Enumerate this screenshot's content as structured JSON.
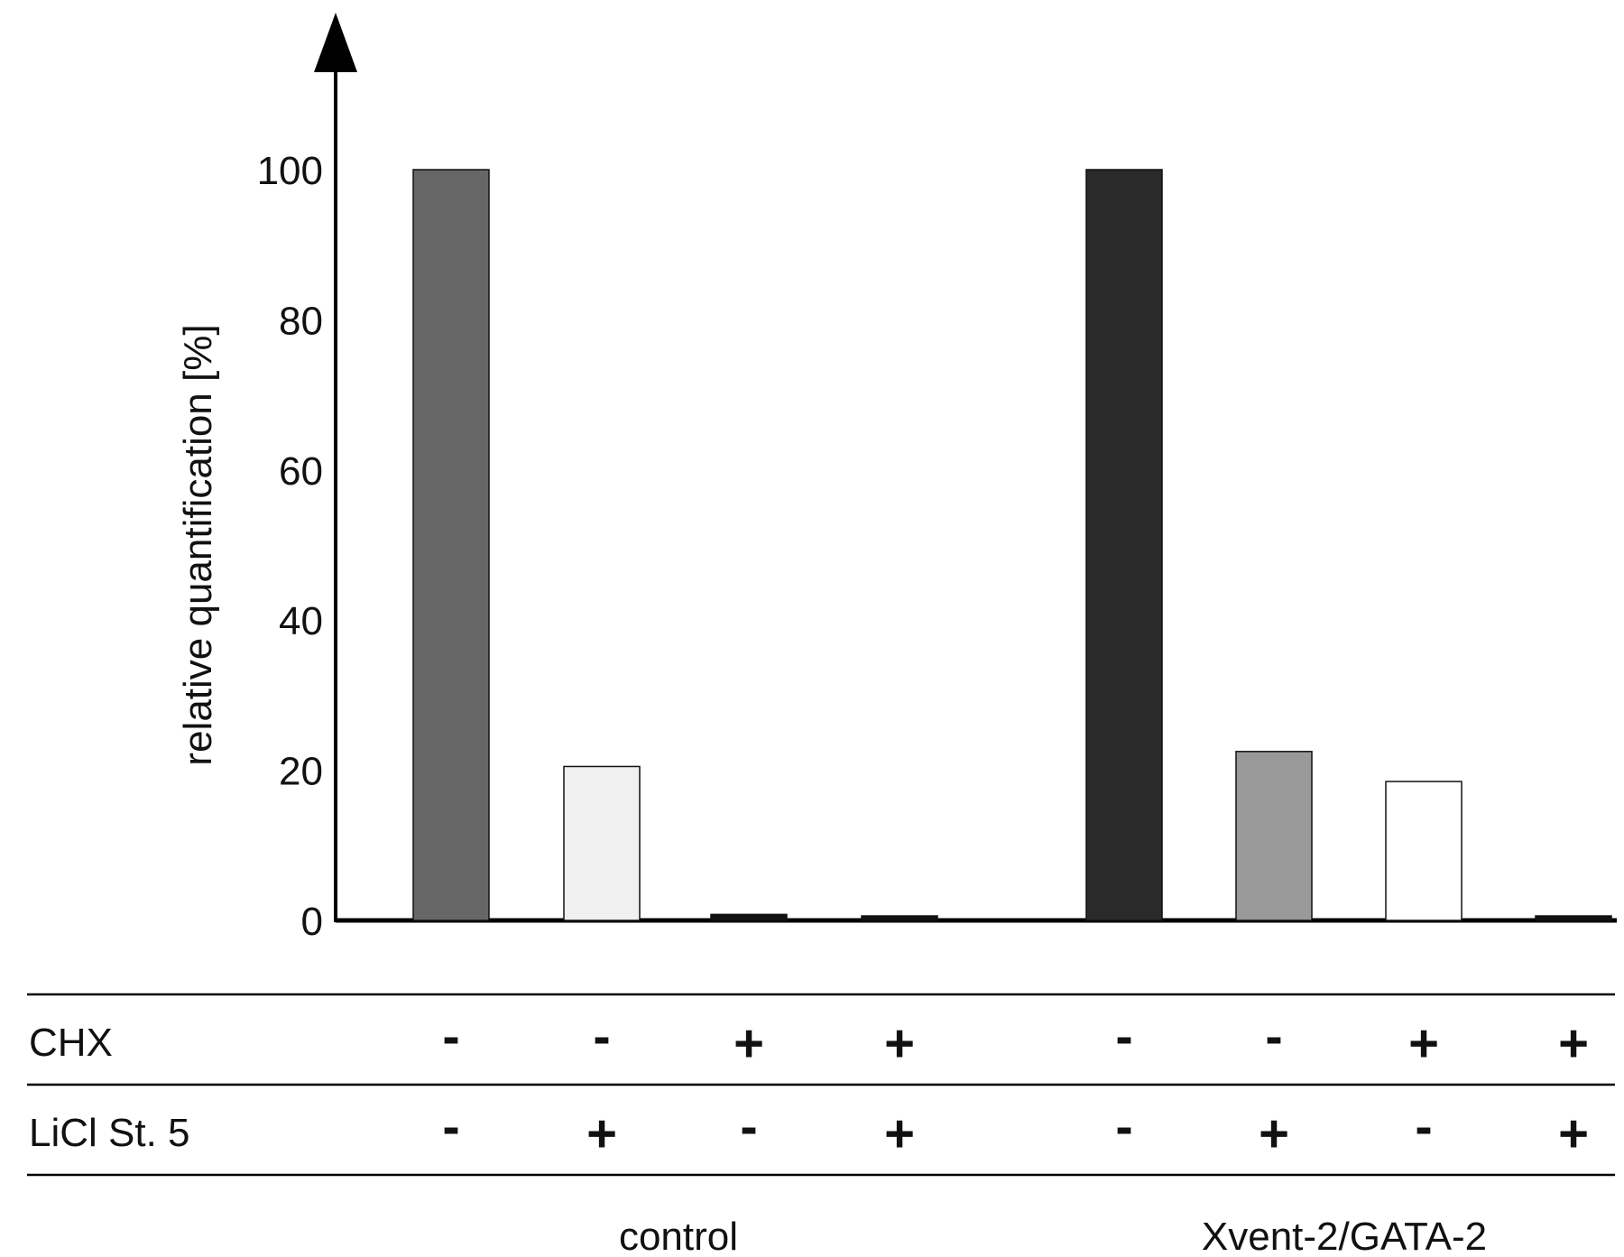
{
  "chart_data": {
    "type": "bar",
    "ylabel": "relative  quantification [%]",
    "xlabel": "",
    "ylim": [
      0,
      120
    ],
    "yticks": [
      0,
      20,
      40,
      60,
      80,
      100
    ],
    "grid": false,
    "legend": "none",
    "groups": [
      {
        "name": "control",
        "bars": [
          {
            "value": 100,
            "color": "#666666"
          },
          {
            "value": 20.5,
            "color": "#f0f0f0"
          },
          {
            "value": 0.8,
            "color": "#111111"
          },
          {
            "value": 0.6,
            "color": "#111111"
          }
        ]
      },
      {
        "name": "Xvent-2/GATA-2",
        "bars": [
          {
            "value": 100,
            "color": "#2a2a2a"
          },
          {
            "value": 22.5,
            "color": "#999999"
          },
          {
            "value": 18.5,
            "color": "#ffffff"
          },
          {
            "value": 0.6,
            "color": "#111111"
          }
        ]
      }
    ],
    "conditions": [
      {
        "label": "CHX",
        "values": [
          "-",
          "-",
          "+",
          "+",
          "-",
          "-",
          "+",
          "+"
        ]
      },
      {
        "label": "LiCl St. 5",
        "values": [
          "-",
          "+",
          "-",
          "+",
          "-",
          "+",
          "-",
          "+"
        ]
      }
    ]
  }
}
